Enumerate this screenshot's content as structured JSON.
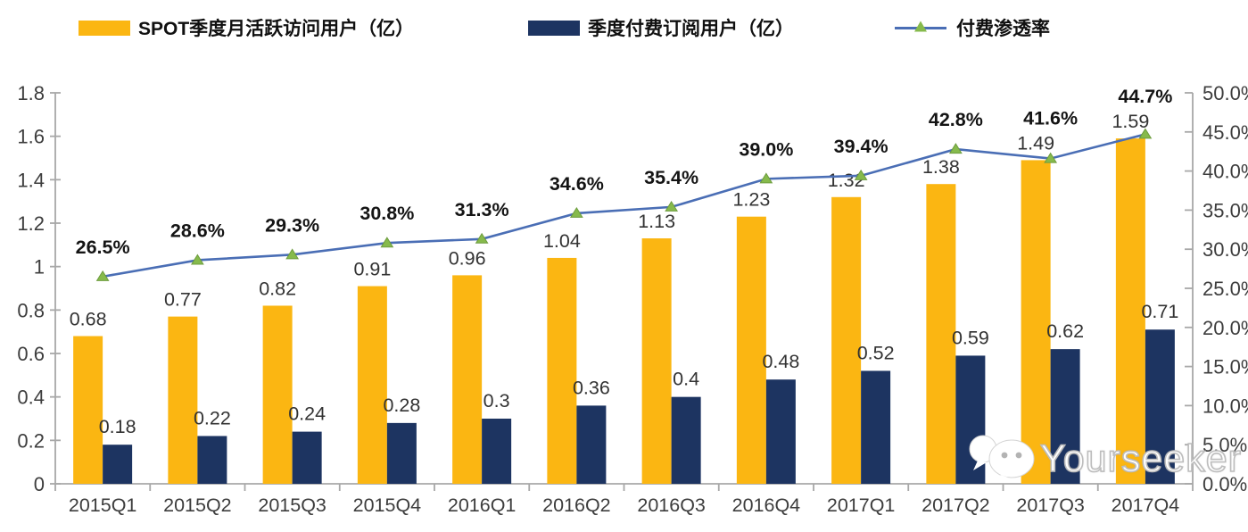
{
  "legend": [
    {
      "label": "SPOT季度月活跃访问用户（亿）"
    },
    {
      "label": "季度付费订阅用户（亿）"
    },
    {
      "label": "付费渗透率"
    }
  ],
  "watermark": {
    "text": "Yourseeker"
  },
  "chart_data": {
    "type": "bar+line",
    "title": "",
    "categories": [
      "2015Q1",
      "2015Q2",
      "2015Q3",
      "2015Q4",
      "2016Q1",
      "2016Q2",
      "2016Q3",
      "2016Q4",
      "2017Q1",
      "2017Q2",
      "2017Q3",
      "2017Q4"
    ],
    "series": [
      {
        "name": "SPOT季度月活跃访问用户（亿）",
        "type": "bar",
        "axis": "left",
        "color": "#FBB612",
        "values": [
          0.68,
          0.77,
          0.82,
          0.91,
          0.96,
          1.04,
          1.13,
          1.23,
          1.32,
          1.38,
          1.49,
          1.59
        ],
        "labels": [
          "0.68",
          "0.77",
          "0.82",
          "0.91",
          "0.96",
          "1.04",
          "1.13",
          "1.23",
          "1.32",
          "1.38",
          "1.49",
          "1.59"
        ]
      },
      {
        "name": "季度付费订阅用户（亿）",
        "type": "bar",
        "axis": "left",
        "color": "#1D3461",
        "values": [
          0.18,
          0.22,
          0.24,
          0.28,
          0.3,
          0.36,
          0.4,
          0.48,
          0.52,
          0.59,
          0.62,
          0.71
        ],
        "labels": [
          "0.18",
          "0.22",
          "0.24",
          "0.28",
          "0.3",
          "0.36",
          "0.4",
          "0.48",
          "0.52",
          "0.59",
          "0.62",
          "0.71"
        ]
      },
      {
        "name": "付费渗透率",
        "type": "line",
        "axis": "right",
        "color": "#4A6EB5",
        "marker": "triangle",
        "marker_color": "#86BA4C",
        "values": [
          26.5,
          28.6,
          29.3,
          30.8,
          31.3,
          34.6,
          35.4,
          39.0,
          39.4,
          42.8,
          41.6,
          44.7
        ],
        "labels": [
          "26.5%",
          "28.6%",
          "29.3%",
          "30.8%",
          "31.3%",
          "34.6%",
          "35.4%",
          "39.0%",
          "39.4%",
          "42.8%",
          "41.6%",
          "44.7%"
        ]
      }
    ],
    "left_axis": {
      "min": 0,
      "max": 1.8,
      "tick_labels": [
        "1.8",
        "1.6",
        "1.4",
        "1.2",
        "1",
        "0.8",
        "0.6",
        "0.4",
        "0.2",
        "0"
      ]
    },
    "right_axis": {
      "min": 0,
      "max": 50,
      "tick_labels": [
        "50.0%",
        "45.0%",
        "40.0%",
        "35.0%",
        "30.0%",
        "25.0%",
        "20.0%",
        "15.0%",
        "10.0%",
        "5.0%",
        "0.0%"
      ]
    },
    "grid": false,
    "legend_position": "top"
  }
}
